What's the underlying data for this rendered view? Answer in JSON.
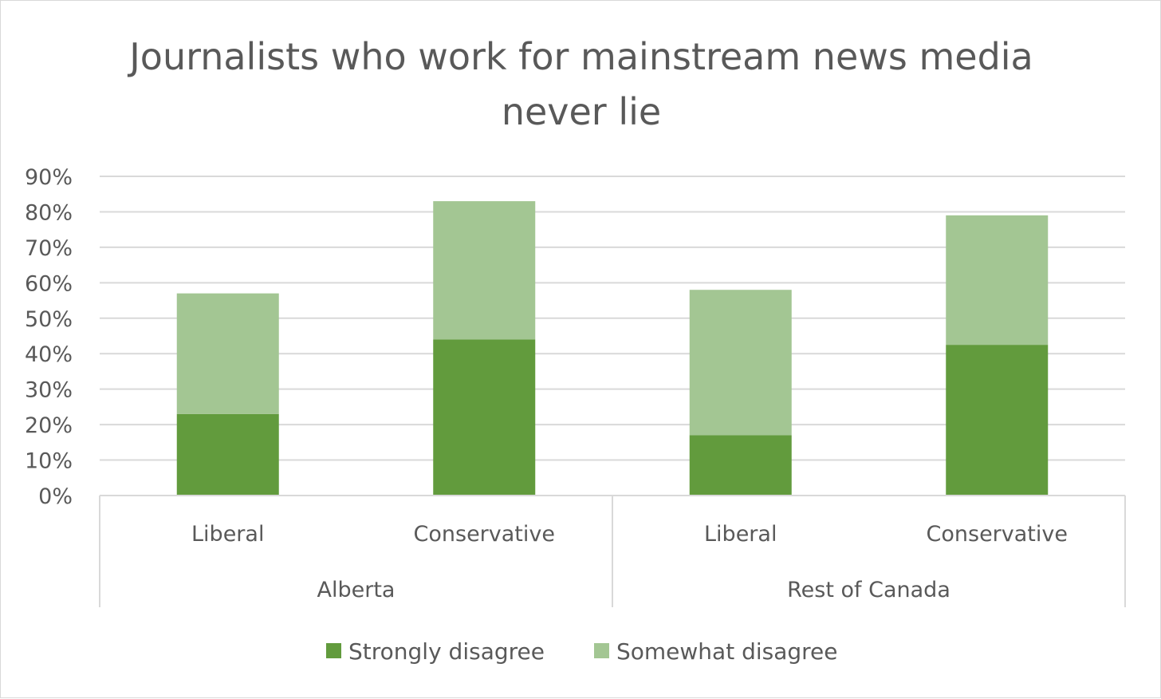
{
  "chart_data": {
    "type": "bar",
    "stacked": true,
    "title_lines": [
      "Journalists who work for mainstream news media",
      "never lie"
    ],
    "categories": [
      "Liberal",
      "Conservative",
      "Liberal",
      "Conservative"
    ],
    "groups": [
      {
        "label": "Alberta",
        "categories": [
          "Liberal",
          "Conservative"
        ]
      },
      {
        "label": "Rest of Canada",
        "categories": [
          "Liberal",
          "Conservative"
        ]
      }
    ],
    "series": [
      {
        "name": "Strongly disagree",
        "color": "#629b3d",
        "values": [
          23,
          44,
          17,
          42.5
        ]
      },
      {
        "name": "Somewhat disagree",
        "color": "#a3c693",
        "values": [
          34,
          39,
          41,
          36.5
        ]
      }
    ],
    "ylim": [
      0,
      90
    ],
    "yticks": [
      "0%",
      "10%",
      "20%",
      "30%",
      "40%",
      "50%",
      "60%",
      "70%",
      "80%",
      "90%"
    ],
    "grid": true,
    "legend_position": "bottom"
  }
}
